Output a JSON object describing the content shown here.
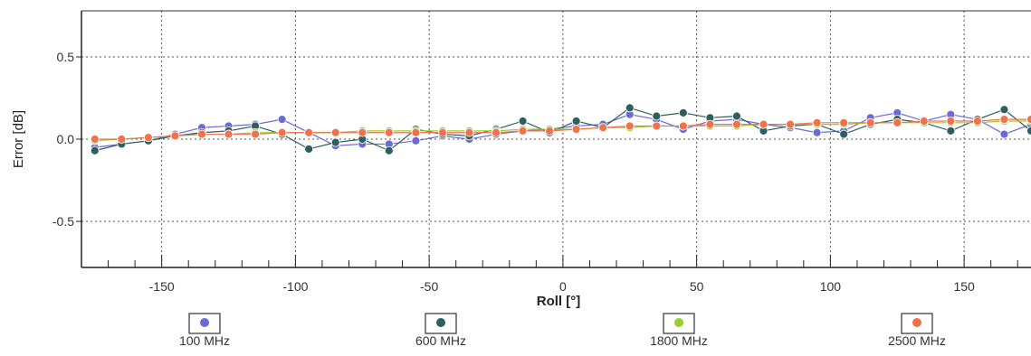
{
  "chart_data": {
    "type": "line",
    "xlabel": "Roll [°]",
    "ylabel": "Error [dB]",
    "xlim": [
      -180,
      175
    ],
    "ylim": [
      -0.78,
      0.78
    ],
    "x_ticks": [
      -150,
      -100,
      -50,
      0,
      50,
      100,
      150
    ],
    "x_tick_labels": [
      "-150",
      "-100",
      "-50",
      "0",
      "50",
      "100",
      "150"
    ],
    "x_minor_step": 10,
    "y_ticks": [
      -0.5,
      0.0,
      0.5
    ],
    "y_tick_labels": [
      "-0.5",
      "0.0",
      "0.5"
    ],
    "grid": true,
    "legend": "bottom",
    "x": [
      -175,
      -165,
      -155,
      -145,
      -135,
      -125,
      -115,
      -105,
      -95,
      -85,
      -75,
      -65,
      -55,
      -45,
      -35,
      -25,
      -15,
      -5,
      5,
      15,
      25,
      35,
      45,
      55,
      65,
      75,
      85,
      95,
      105,
      115,
      125,
      135,
      145,
      155,
      165,
      175
    ],
    "series": [
      {
        "name": "100 MHz",
        "color": "#6b6bd6",
        "values": [
          -0.05,
          -0.03,
          -0.01,
          0.03,
          0.07,
          0.08,
          0.09,
          0.12,
          0.04,
          -0.04,
          -0.03,
          -0.03,
          -0.01,
          0.02,
          0.0,
          0.03,
          0.05,
          0.06,
          0.08,
          0.09,
          0.15,
          0.12,
          0.06,
          0.11,
          0.12,
          0.09,
          0.07,
          0.04,
          0.05,
          0.13,
          0.16,
          0.11,
          0.15,
          0.12,
          0.03,
          0.09
        ]
      },
      {
        "name": "600 MHz",
        "color": "#2e5e5e",
        "values": [
          -0.07,
          -0.03,
          -0.01,
          0.02,
          0.04,
          0.05,
          0.08,
          0.03,
          -0.06,
          -0.02,
          0.0,
          -0.07,
          0.06,
          0.03,
          0.02,
          0.06,
          0.11,
          0.04,
          0.11,
          0.07,
          0.19,
          0.14,
          0.16,
          0.13,
          0.14,
          0.05,
          0.08,
          0.09,
          0.03,
          0.09,
          0.12,
          0.1,
          0.05,
          0.12,
          0.18,
          0.05
        ]
      },
      {
        "name": "1800 MHz",
        "color": "#9acd32",
        "values": [
          -0.01,
          0.0,
          0.01,
          0.02,
          0.03,
          0.03,
          0.04,
          0.04,
          0.04,
          0.04,
          0.05,
          0.05,
          0.05,
          0.05,
          0.05,
          0.05,
          0.06,
          0.06,
          0.06,
          0.07,
          0.07,
          0.08,
          0.08,
          0.08,
          0.08,
          0.09,
          0.09,
          0.09,
          0.09,
          0.1,
          0.1,
          0.1,
          0.1,
          0.1,
          0.11,
          0.11
        ]
      },
      {
        "name": "2500 MHz",
        "color": "#f0724a",
        "values": [
          0.0,
          0.0,
          0.01,
          0.02,
          0.03,
          0.03,
          0.03,
          0.04,
          0.04,
          0.04,
          0.04,
          0.04,
          0.04,
          0.04,
          0.04,
          0.04,
          0.05,
          0.05,
          0.06,
          0.07,
          0.08,
          0.08,
          0.08,
          0.09,
          0.09,
          0.09,
          0.09,
          0.1,
          0.1,
          0.1,
          0.1,
          0.11,
          0.11,
          0.11,
          0.12,
          0.12
        ]
      }
    ]
  }
}
